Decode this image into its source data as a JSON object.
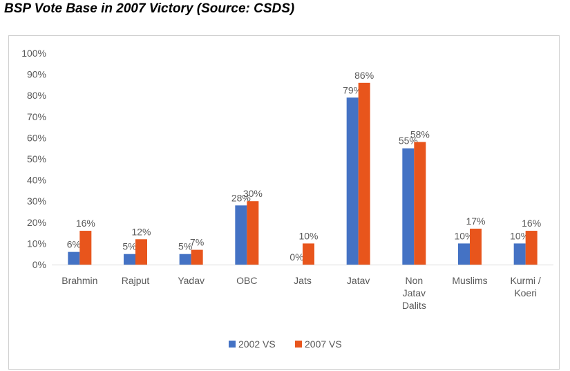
{
  "title": "BSP Vote Base in 2007 Victory (Source: CSDS)",
  "chart_data": {
    "type": "bar",
    "categories": [
      [
        "Brahmin"
      ],
      [
        "Rajput"
      ],
      [
        "Yadav"
      ],
      [
        "OBC"
      ],
      [
        "Jats"
      ],
      [
        "Jatav"
      ],
      [
        "Non",
        "Jatav",
        "Dalits"
      ],
      [
        "Muslims"
      ],
      [
        "Kurmi /",
        "Koeri"
      ]
    ],
    "series": [
      {
        "name": "2002 VS",
        "color": "#4472c4",
        "values": [
          6,
          5,
          5,
          28,
          0,
          79,
          55,
          10,
          10
        ],
        "labels": [
          "6%",
          "5%",
          "5%",
          "28%",
          "0%",
          "79%",
          "55%",
          "10%",
          "10%"
        ]
      },
      {
        "name": "2007 VS",
        "color": "#e8551c",
        "values": [
          16,
          12,
          7,
          30,
          10,
          86,
          58,
          17,
          16
        ],
        "labels": [
          "16%",
          "12%",
          "7%",
          "30%",
          "10%",
          "86%",
          "58%",
          "17%",
          "16%"
        ]
      }
    ],
    "y_ticks": [
      "0%",
      "10%",
      "20%",
      "30%",
      "40%",
      "50%",
      "60%",
      "70%",
      "80%",
      "90%",
      "100%"
    ],
    "ylim": [
      0,
      100
    ],
    "grid": false,
    "legend_position": "bottom"
  }
}
